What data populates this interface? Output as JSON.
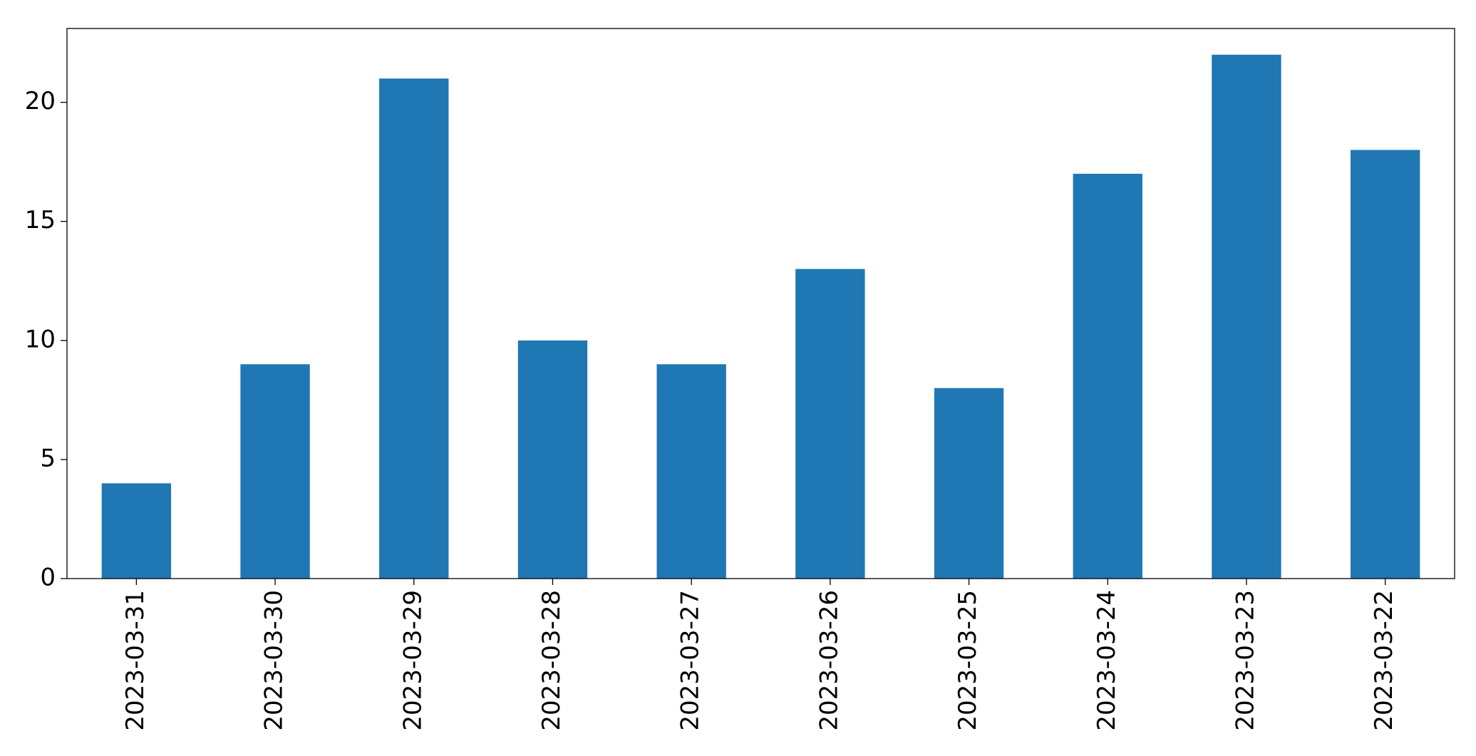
{
  "chart_data": {
    "type": "bar",
    "categories": [
      "2023-03-31",
      "2023-03-30",
      "2023-03-29",
      "2023-03-28",
      "2023-03-27",
      "2023-03-26",
      "2023-03-25",
      "2023-03-24",
      "2023-03-23",
      "2023-03-22"
    ],
    "values": [
      4,
      9,
      21,
      10,
      9,
      13,
      8,
      17,
      22,
      18
    ],
    "color": "#1f77b4",
    "ylim": [
      0,
      23.1
    ],
    "yticks": [
      0,
      5,
      10,
      15,
      20
    ],
    "grid": false
  }
}
